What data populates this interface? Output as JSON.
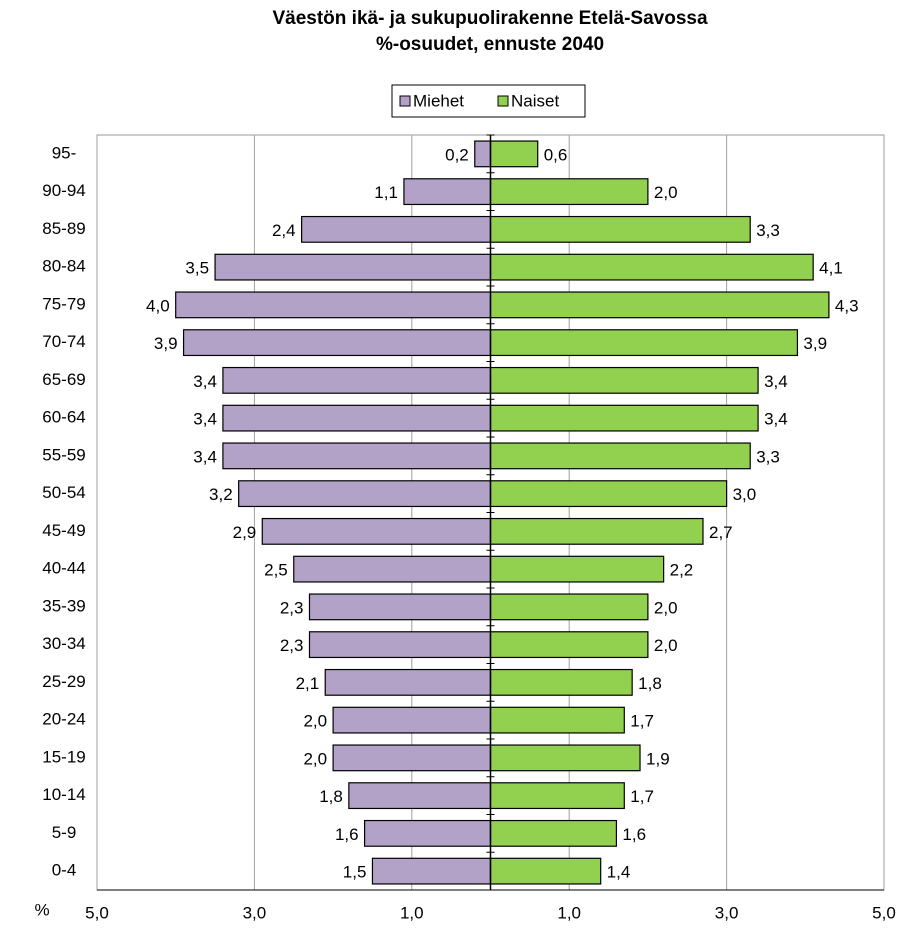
{
  "chart_data": {
    "type": "pyramid",
    "title": "Väestön ikä- ja sukupuolirakenne Etelä-Savossa",
    "subtitle": "%-osuudet,  ennuste 2040",
    "xlabel": "%",
    "categories": [
      "95-",
      "90-94",
      "85-89",
      "80-84",
      "75-79",
      "70-74",
      "65-69",
      "60-64",
      "55-59",
      "50-54",
      "45-49",
      "40-44",
      "35-39",
      "30-34",
      "25-29",
      "20-24",
      "15-19",
      "10-14",
      "5-9",
      "0-4"
    ],
    "series": [
      {
        "name": "Miehet",
        "color": "#b3a2c7",
        "label_color": "#ff0000",
        "side": "left",
        "values": [
          0.2,
          1.1,
          2.4,
          3.5,
          4.0,
          3.9,
          3.4,
          3.4,
          3.4,
          3.2,
          2.9,
          2.5,
          2.3,
          2.3,
          2.1,
          2.0,
          2.0,
          1.8,
          1.6,
          1.5
        ],
        "value_labels": [
          "0,2",
          "1,1",
          "2,4",
          "3,5",
          "4,0",
          "3,9",
          "3,4",
          "3,4",
          "3,4",
          "3,2",
          "2,9",
          "2,5",
          "2,3",
          "2,3",
          "2,1",
          "2,0",
          "2,0",
          "1,8",
          "1,6",
          "1,5"
        ]
      },
      {
        "name": "Naiset",
        "color": "#92d050",
        "label_color": "#000000",
        "side": "right",
        "values": [
          0.6,
          2.0,
          3.3,
          4.1,
          4.3,
          3.9,
          3.4,
          3.4,
          3.3,
          3.0,
          2.7,
          2.2,
          2.0,
          2.0,
          1.8,
          1.7,
          1.9,
          1.7,
          1.6,
          1.4
        ],
        "value_labels": [
          "0,6",
          "2,0",
          "3,3",
          "4,1",
          "4,3",
          "3,9",
          "3,4",
          "3,4",
          "3,3",
          "3,0",
          "2,7",
          "2,2",
          "2,0",
          "2,0",
          "1,8",
          "1,7",
          "1,9",
          "1,7",
          "1,6",
          "1,4"
        ]
      }
    ],
    "xlim": [
      -5,
      5
    ],
    "xticks": [
      {
        "value": -5,
        "label": "5,0"
      },
      {
        "value": -3,
        "label": "3,0"
      },
      {
        "value": -1,
        "label": "1,0"
      },
      {
        "value": 1,
        "label": "1,0"
      },
      {
        "value": 3,
        "label": "3,0"
      },
      {
        "value": 5,
        "label": "5,0"
      }
    ],
    "negative_tick_color": "#ff0000",
    "grid": true
  }
}
